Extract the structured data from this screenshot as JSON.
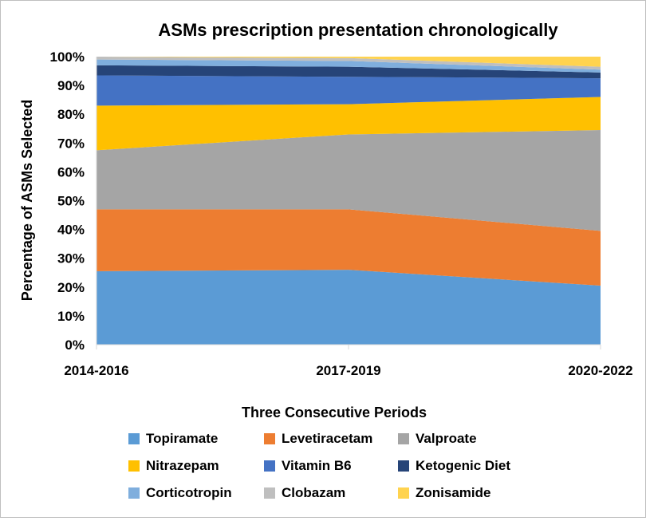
{
  "chart_data": {
    "type": "area",
    "stacked": true,
    "normalized": true,
    "title": "ASMs prescription presentation chronologically",
    "xlabel": "Three Consecutive Periods",
    "ylabel": "Percentage of ASMs Selected",
    "categories": [
      "2014-2016",
      "2017-2019",
      "2020-2022"
    ],
    "yticks": [
      "0%",
      "10%",
      "20%",
      "30%",
      "40%",
      "50%",
      "60%",
      "70%",
      "80%",
      "90%",
      "100%"
    ],
    "ylim": [
      0,
      100
    ],
    "series": [
      {
        "name": "Topiramate",
        "color": "#5B9BD5",
        "values": [
          25.5,
          26.0,
          20.5
        ]
      },
      {
        "name": "Levetiracetam",
        "color": "#ED7D31",
        "values": [
          21.5,
          21.0,
          19.0
        ]
      },
      {
        "name": "Valproate",
        "color": "#A5A5A5",
        "values": [
          20.5,
          26.0,
          35.0
        ]
      },
      {
        "name": "Nitrazepam",
        "color": "#FFC000",
        "values": [
          15.5,
          10.5,
          11.5
        ]
      },
      {
        "name": "Vitamin B6",
        "color": "#4472C4",
        "values": [
          10.5,
          9.5,
          6.5
        ]
      },
      {
        "name": "Ketogenic Diet",
        "color": "#264478",
        "values": [
          3.5,
          3.5,
          2.0
        ]
      },
      {
        "name": "Corticotropin",
        "color": "#7FAEDD",
        "values": [
          2.0,
          2.0,
          1.0
        ]
      },
      {
        "name": "Clobazam",
        "color": "#BFBFBF",
        "values": [
          1.0,
          1.0,
          1.0
        ]
      },
      {
        "name": "Zonisamide",
        "color": "#FFD34F",
        "values": [
          0.0,
          0.5,
          3.5
        ]
      }
    ]
  }
}
